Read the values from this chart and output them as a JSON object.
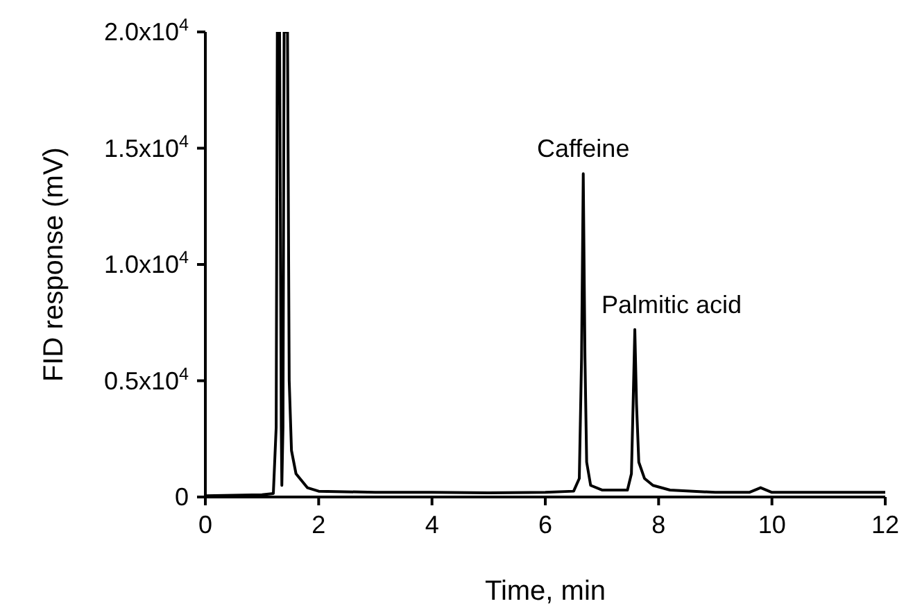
{
  "chart_data": {
    "type": "line",
    "xlabel": "Time, min",
    "ylabel": "FID response (mV)",
    "x": [
      0,
      1.0,
      1.2,
      1.25,
      1.27,
      1.31,
      1.34,
      1.35,
      1.37,
      1.39,
      1.45,
      1.48,
      1.52,
      1.6,
      1.8,
      2.0,
      3,
      4,
      5,
      6,
      6.5,
      6.6,
      6.64,
      6.67,
      6.7,
      6.73,
      6.8,
      7.0,
      7.45,
      7.52,
      7.55,
      7.58,
      7.61,
      7.65,
      7.75,
      7.9,
      8.2,
      9,
      9.6,
      9.8,
      10,
      11,
      12
    ],
    "series": [
      {
        "color": "#000000",
        "values": [
          50,
          100,
          150,
          3000,
          20000,
          20000,
          3000,
          500,
          3000,
          20000,
          20000,
          5000,
          2000,
          1000,
          400,
          250,
          200,
          200,
          180,
          200,
          250,
          800,
          6000,
          13900,
          6000,
          1500,
          500,
          300,
          300,
          1000,
          4000,
          7200,
          4000,
          1500,
          800,
          500,
          300,
          200,
          200,
          400,
          200,
          200,
          200
        ]
      }
    ],
    "xlim": [
      0,
      12
    ],
    "xticks": [
      0,
      2,
      4,
      6,
      8,
      10,
      12
    ],
    "ylim": [
      0,
      20000
    ],
    "yticks": [
      {
        "value": 0,
        "label": "0"
      },
      {
        "value": 5000,
        "label": "0.5x10$^{4}$"
      },
      {
        "value": 10000,
        "label": "1.0x10$^{4}$"
      },
      {
        "value": 15000,
        "label": "1.5x10$^{4}$"
      },
      {
        "value": 20000,
        "label": "2.0x10$^{4}$"
      }
    ],
    "annotations": [
      {
        "text": "Caffeine",
        "x": 6.67,
        "y": 13900
      },
      {
        "text": "Palmitic acid",
        "x": 7.58,
        "y": 7200
      }
    ],
    "grid": false,
    "legend": false,
    "marker": "none",
    "line_style": "solid"
  }
}
